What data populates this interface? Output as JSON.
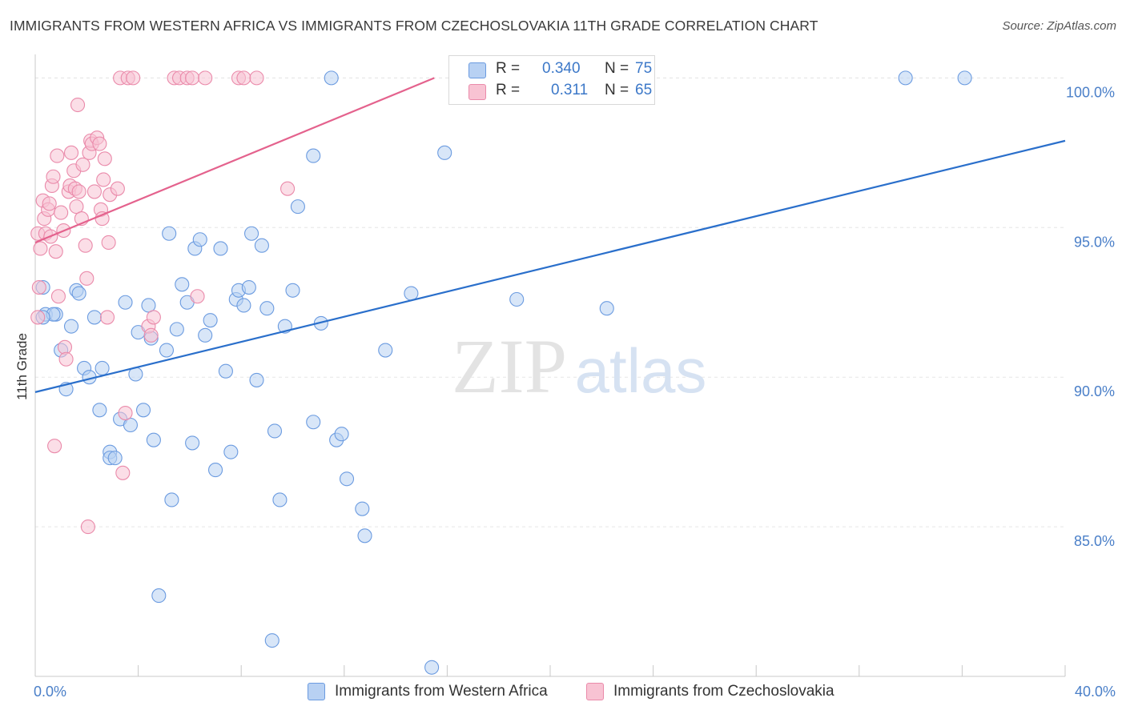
{
  "header": {
    "title": "IMMIGRANTS FROM WESTERN AFRICA VS IMMIGRANTS FROM CZECHOSLOVAKIA 11TH GRADE CORRELATION CHART",
    "source": "Source: ZipAtlas.com"
  },
  "watermark": {
    "zip": "ZIP",
    "atlas": "atlas"
  },
  "legend": {
    "rows": [
      {
        "r_label": "R =",
        "r_value": "0.340",
        "n_label": "N =",
        "n_value": "75"
      },
      {
        "r_label": "R =",
        "r_value": "0.311",
        "n_label": "N =",
        "n_value": "65"
      }
    ]
  },
  "colors": {
    "blue_fill": "#b8d1f3",
    "blue_stroke": "#6b9be0",
    "blue_line": "#2a6fcb",
    "pink_fill": "#f8c3d3",
    "pink_stroke": "#ea8aaa",
    "pink_line": "#e4628d",
    "tick_label": "#4a7fc8",
    "grid": "#e6e6e6"
  },
  "chart_data": {
    "type": "scatter",
    "title": "IMMIGRANTS FROM WESTERN AFRICA VS IMMIGRANTS FROM CZECHOSLOVAKIA 11TH GRADE CORRELATION CHART",
    "xlabel": "",
    "ylabel": "11th Grade",
    "xlim": [
      0,
      40
    ],
    "ylim": [
      80.0,
      101.0
    ],
    "x_tick_labels": [
      "0.0%",
      "40.0%"
    ],
    "y_ticks": [
      85,
      90,
      95,
      100
    ],
    "y_tick_labels": [
      "85.0%",
      "90.0%",
      "95.0%",
      "100.0%"
    ],
    "grid": true,
    "legend_position": "top-center",
    "series": [
      {
        "name": "Immigrants from Western Africa",
        "color": "#6b9be0",
        "trend": {
          "x": [
            0,
            40
          ],
          "y": [
            89.5,
            97.9
          ]
        },
        "points": [
          [
            0.3,
            93.0
          ],
          [
            0.4,
            92.1
          ],
          [
            0.8,
            92.1
          ],
          [
            0.7,
            92.1
          ],
          [
            1.0,
            90.9
          ],
          [
            1.2,
            89.6
          ],
          [
            1.4,
            91.7
          ],
          [
            1.6,
            92.9
          ],
          [
            1.7,
            92.8
          ],
          [
            1.9,
            90.3
          ],
          [
            2.1,
            90.0
          ],
          [
            2.3,
            92.0
          ],
          [
            2.5,
            88.9
          ],
          [
            2.6,
            90.3
          ],
          [
            2.9,
            87.5
          ],
          [
            2.9,
            87.3
          ],
          [
            3.1,
            87.3
          ],
          [
            3.3,
            88.6
          ],
          [
            3.5,
            92.5
          ],
          [
            3.7,
            88.4
          ],
          [
            3.9,
            90.1
          ],
          [
            4.0,
            91.5
          ],
          [
            4.2,
            88.9
          ],
          [
            4.4,
            92.4
          ],
          [
            4.5,
            91.3
          ],
          [
            4.6,
            87.9
          ],
          [
            4.8,
            82.7
          ],
          [
            5.1,
            90.9
          ],
          [
            5.2,
            94.8
          ],
          [
            5.3,
            85.9
          ],
          [
            5.5,
            91.6
          ],
          [
            5.7,
            93.1
          ],
          [
            5.9,
            92.5
          ],
          [
            6.1,
            87.8
          ],
          [
            6.2,
            94.3
          ],
          [
            6.4,
            94.6
          ],
          [
            6.6,
            91.4
          ],
          [
            6.8,
            91.9
          ],
          [
            7.0,
            86.9
          ],
          [
            7.2,
            94.3
          ],
          [
            7.4,
            90.2
          ],
          [
            7.6,
            87.5
          ],
          [
            7.8,
            92.6
          ],
          [
            7.9,
            92.9
          ],
          [
            8.1,
            92.4
          ],
          [
            8.3,
            93.0
          ],
          [
            8.4,
            94.8
          ],
          [
            8.6,
            89.9
          ],
          [
            8.8,
            94.4
          ],
          [
            9.0,
            92.3
          ],
          [
            9.2,
            81.2
          ],
          [
            9.3,
            88.2
          ],
          [
            9.5,
            85.9
          ],
          [
            9.7,
            91.7
          ],
          [
            10.0,
            92.9
          ],
          [
            10.2,
            95.7
          ],
          [
            10.8,
            97.4
          ],
          [
            10.8,
            88.5
          ],
          [
            11.1,
            91.8
          ],
          [
            11.5,
            100.0
          ],
          [
            11.7,
            87.9
          ],
          [
            11.9,
            88.1
          ],
          [
            12.1,
            86.6
          ],
          [
            12.7,
            85.6
          ],
          [
            12.8,
            84.7
          ],
          [
            13.6,
            90.9
          ],
          [
            14.6,
            92.8
          ],
          [
            15.4,
            80.3
          ],
          [
            15.9,
            97.5
          ],
          [
            16.4,
            100.0
          ],
          [
            18.7,
            92.6
          ],
          [
            22.2,
            92.3
          ],
          [
            33.8,
            100.0
          ],
          [
            36.1,
            100.0
          ],
          [
            0.3,
            92.0
          ]
        ]
      },
      {
        "name": "Immigrants from Czechoslovakia",
        "color": "#ea8aaa",
        "trend": {
          "x": [
            0,
            15.5
          ],
          "y": [
            94.5,
            100.0
          ]
        },
        "points": [
          [
            0.1,
            94.8
          ],
          [
            0.2,
            94.3
          ],
          [
            0.3,
            95.9
          ],
          [
            0.35,
            95.3
          ],
          [
            0.4,
            94.8
          ],
          [
            0.5,
            95.6
          ],
          [
            0.55,
            95.8
          ],
          [
            0.6,
            94.7
          ],
          [
            0.65,
            96.4
          ],
          [
            0.7,
            96.7
          ],
          [
            0.75,
            87.7
          ],
          [
            0.8,
            94.2
          ],
          [
            0.85,
            97.4
          ],
          [
            0.9,
            92.7
          ],
          [
            1.0,
            95.5
          ],
          [
            1.1,
            94.9
          ],
          [
            1.15,
            91.0
          ],
          [
            1.2,
            90.6
          ],
          [
            1.3,
            96.2
          ],
          [
            1.35,
            96.4
          ],
          [
            1.4,
            97.5
          ],
          [
            1.5,
            96.9
          ],
          [
            1.55,
            96.3
          ],
          [
            1.6,
            95.7
          ],
          [
            1.65,
            99.1
          ],
          [
            1.7,
            96.2
          ],
          [
            1.8,
            95.3
          ],
          [
            1.85,
            97.1
          ],
          [
            1.95,
            94.4
          ],
          [
            2.0,
            93.3
          ],
          [
            2.05,
            85.0
          ],
          [
            2.1,
            97.5
          ],
          [
            2.15,
            97.9
          ],
          [
            2.2,
            97.8
          ],
          [
            2.3,
            96.2
          ],
          [
            2.4,
            98.0
          ],
          [
            2.5,
            97.8
          ],
          [
            2.55,
            95.6
          ],
          [
            2.6,
            95.3
          ],
          [
            2.65,
            96.6
          ],
          [
            2.7,
            97.3
          ],
          [
            2.8,
            92.0
          ],
          [
            2.85,
            94.5
          ],
          [
            2.9,
            96.1
          ],
          [
            3.2,
            96.3
          ],
          [
            3.3,
            100.0
          ],
          [
            3.4,
            86.8
          ],
          [
            3.5,
            88.8
          ],
          [
            3.6,
            100.0
          ],
          [
            3.8,
            100.0
          ],
          [
            4.4,
            91.7
          ],
          [
            4.5,
            91.4
          ],
          [
            4.6,
            92.0
          ],
          [
            5.4,
            100.0
          ],
          [
            5.6,
            100.0
          ],
          [
            5.9,
            100.0
          ],
          [
            6.1,
            100.0
          ],
          [
            6.3,
            92.7
          ],
          [
            6.6,
            100.0
          ],
          [
            7.9,
            100.0
          ],
          [
            8.1,
            100.0
          ],
          [
            8.6,
            100.0
          ],
          [
            9.8,
            96.3
          ],
          [
            0.15,
            93.0
          ],
          [
            0.1,
            92.0
          ]
        ]
      }
    ]
  },
  "bottom_legend": {
    "items": [
      {
        "label": "Immigrants from Western Africa"
      },
      {
        "label": "Immigrants from Czechoslovakia"
      }
    ]
  }
}
